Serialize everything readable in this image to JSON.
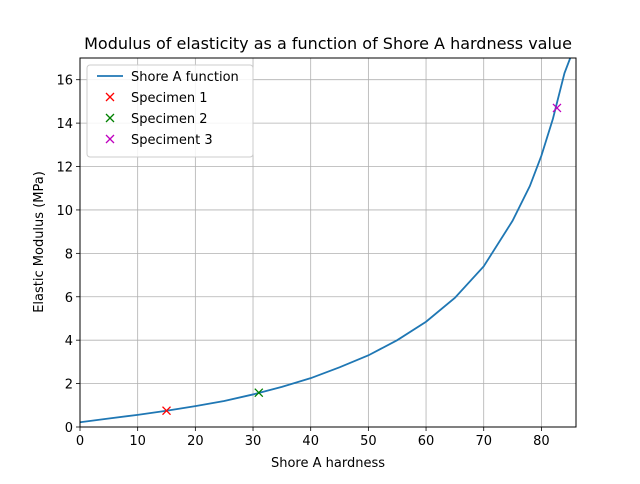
{
  "chart_data": {
    "type": "line",
    "title": "Modulus of elasticity as a function of Shore A hardness value",
    "xlabel": "Shore A hardness",
    "ylabel": "Elastic Modulus (MPa)",
    "xlim": [
      0,
      86
    ],
    "ylim": [
      0,
      17
    ],
    "x_ticks": [
      0,
      10,
      20,
      30,
      40,
      50,
      60,
      70,
      80
    ],
    "y_ticks": [
      0,
      2,
      4,
      6,
      8,
      10,
      12,
      14,
      16
    ],
    "grid": true,
    "legend_position": "top-left",
    "series": [
      {
        "name": "Shore A function",
        "kind": "line",
        "color": "#1f77b4",
        "x": [
          0,
          5,
          10,
          15,
          20,
          25,
          30,
          35,
          40,
          45,
          50,
          55,
          60,
          65,
          70,
          75,
          78,
          80,
          82,
          84,
          85
        ],
        "y": [
          0.22,
          0.39,
          0.56,
          0.75,
          0.96,
          1.2,
          1.5,
          1.85,
          2.25,
          2.75,
          3.3,
          4.0,
          4.85,
          5.95,
          7.4,
          9.5,
          11.1,
          12.5,
          14.2,
          16.3,
          17.0
        ]
      },
      {
        "name": "Specimen 1",
        "kind": "marker",
        "color": "#ff0000",
        "x": [
          15
        ],
        "y": [
          0.75
        ]
      },
      {
        "name": "Specimen 2",
        "kind": "marker",
        "color": "#008000",
        "x": [
          31
        ],
        "y": [
          1.58
        ]
      },
      {
        "name": "Speciment 3",
        "kind": "marker",
        "color": "#bf00bf",
        "x": [
          82.7
        ],
        "y": [
          14.7
        ]
      }
    ]
  }
}
